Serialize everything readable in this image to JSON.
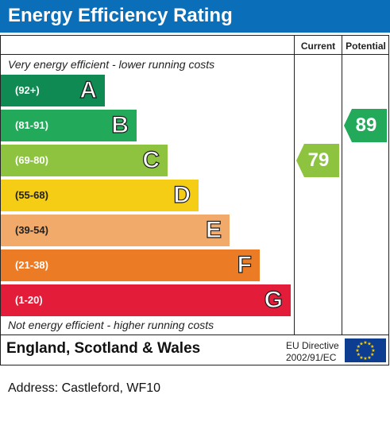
{
  "title": "Energy Efficiency Rating",
  "columns": {
    "current": "Current",
    "potential": "Potential"
  },
  "top_note": "Very energy efficient - lower running costs",
  "bottom_note": "Not energy efficient - higher running costs",
  "bands": [
    {
      "range": "(92+)",
      "letter": "A",
      "color": "#0e8a52"
    },
    {
      "range": "(81-91)",
      "letter": "B",
      "color": "#22a95a"
    },
    {
      "range": "(69-80)",
      "letter": "C",
      "color": "#8dc33f"
    },
    {
      "range": "(55-68)",
      "letter": "D",
      "color": "#f5cd15"
    },
    {
      "range": "(39-54)",
      "letter": "E",
      "color": "#f2aa6b"
    },
    {
      "range": "(21-38)",
      "letter": "F",
      "color": "#ec7b26"
    },
    {
      "range": "(1-20)",
      "letter": "G",
      "color": "#e31c3a"
    }
  ],
  "current_rating": {
    "value": "79",
    "band": "C",
    "color": "#8dc33f"
  },
  "potential_rating": {
    "value": "89",
    "band": "B",
    "color": "#22a95a"
  },
  "footer": {
    "region": "England, Scotland & Wales",
    "directive_line1": "EU Directive",
    "directive_line2": "2002/91/EC",
    "flag_icon": "eu-flag-icon"
  },
  "address": "Address: Castleford, WF10"
}
